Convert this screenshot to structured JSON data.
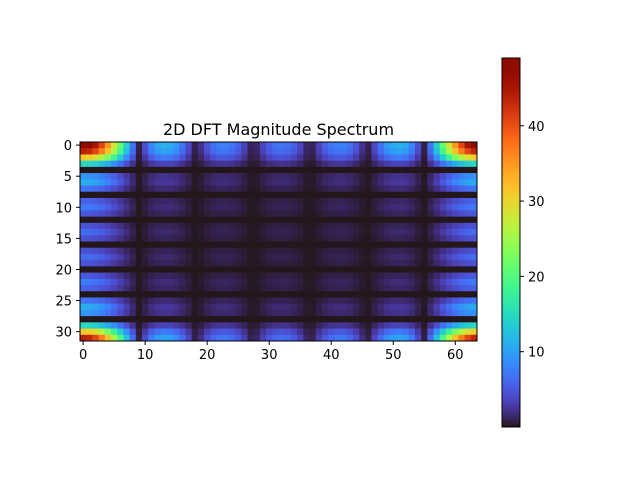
{
  "chart_data": [
    {
      "type": "heatmap",
      "title": "2D DFT Magnitude Spectrum",
      "xlabel": "",
      "ylabel": "",
      "colormap": "turbo",
      "rows": 32,
      "cols": 64,
      "xlim": [
        -0.5,
        63.5
      ],
      "ylim": [
        31.5,
        -0.5
      ],
      "xticks": [
        0,
        10,
        20,
        30,
        40,
        50,
        60
      ],
      "xtick_labels": [
        "0",
        "10",
        "20",
        "30",
        "40",
        "50",
        "60"
      ],
      "yticks": [
        0,
        5,
        10,
        15,
        20,
        25,
        30
      ],
      "ytick_labels": [
        "0",
        "5",
        "10",
        "15",
        "20",
        "25",
        "30"
      ],
      "value_range": [
        0,
        49
      ],
      "peak_value": 49,
      "peak_locations": "four corners (periodic DFT spectrum)",
      "column_nulls": [
        8,
        18,
        27,
        37,
        46,
        55
      ],
      "row_nulls": [
        4,
        8,
        12,
        16,
        20,
        24,
        28
      ],
      "grid": false
    },
    {
      "type": "colorbar",
      "range": [
        0,
        49
      ],
      "ticks": [
        10,
        20,
        30,
        40
      ],
      "tick_labels": [
        "10",
        "20",
        "30",
        "40"
      ],
      "orientation": "vertical",
      "placement": "right"
    }
  ]
}
